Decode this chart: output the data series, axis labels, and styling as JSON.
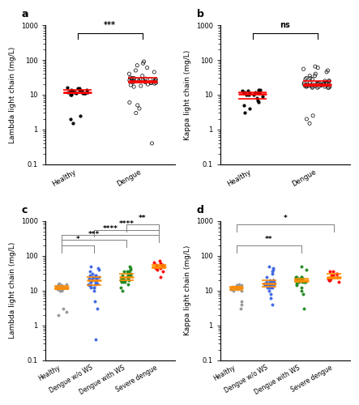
{
  "panel_a": {
    "label": "a",
    "ylabel": "Lambda light chain (mg/L)",
    "groups": [
      "Healthy",
      "Dengue"
    ],
    "median_color": "#FF0000",
    "sig_text": "***",
    "sig_color": "black",
    "ylim": [
      0.1,
      1000
    ],
    "healthy_data": [
      12,
      14,
      11,
      15,
      13,
      10,
      12,
      11,
      14,
      13,
      16,
      12,
      11,
      10,
      13,
      14,
      12,
      15,
      11,
      13,
      2.5,
      2.0,
      1.5
    ],
    "dengue_data": [
      25,
      28,
      22,
      30,
      27,
      24,
      26,
      29,
      23,
      31,
      25,
      28,
      22,
      27,
      24,
      20,
      18,
      30,
      35,
      40,
      45,
      50,
      60,
      70,
      80,
      90,
      25,
      22,
      28,
      26,
      24,
      23,
      21,
      19,
      17,
      6,
      5,
      4,
      3,
      0.4
    ]
  },
  "panel_b": {
    "label": "b",
    "ylabel": "Kappa light chain (mg/L)",
    "groups": [
      "Healthy",
      "Dengue"
    ],
    "median_color": "#FF0000",
    "sig_text": "ns",
    "sig_color": "black",
    "ylim": [
      0.1,
      1000
    ],
    "healthy_data": [
      11,
      13,
      10,
      12,
      14,
      11,
      9,
      12,
      10,
      13,
      11,
      8,
      7,
      6,
      5,
      4,
      3,
      14,
      12,
      10
    ],
    "dengue_data": [
      18,
      20,
      17,
      22,
      19,
      16,
      21,
      18,
      20,
      17,
      22,
      19,
      16,
      21,
      18,
      20,
      17,
      22,
      19,
      16,
      21,
      25,
      30,
      35,
      25,
      22,
      28,
      18,
      20,
      17,
      22,
      19,
      16,
      21,
      18,
      20,
      17,
      22,
      25,
      28,
      30,
      35,
      40,
      45,
      50,
      55,
      60,
      65,
      1.5,
      2.0,
      2.5
    ]
  },
  "panel_c": {
    "label": "c",
    "ylabel": "Lambda light chain (mg/L)",
    "groups": [
      "Healthy",
      "Dengue w/o WS",
      "Dengue with WS",
      "Severe dengue"
    ],
    "colors": [
      "#999999",
      "#4169E1",
      "#228B22",
      "#FF0000"
    ],
    "median_color": "#FF8C00",
    "sig_pairs": [
      {
        "pair": [
          0,
          1
        ],
        "text": "*"
      },
      {
        "pair": [
          0,
          2
        ],
        "text": "***"
      },
      {
        "pair": [
          0,
          3
        ],
        "text": "****"
      },
      {
        "pair": [
          1,
          3
        ],
        "text": "****"
      },
      {
        "pair": [
          2,
          3
        ],
        "text": "**"
      }
    ],
    "ylim": [
      0.1,
      1000
    ],
    "group_data": [
      [
        12,
        14,
        11,
        13,
        10,
        15,
        12,
        11,
        14,
        13,
        16,
        12,
        11,
        10,
        13,
        14,
        12,
        15,
        11,
        13,
        2.5,
        2.0,
        3.0
      ],
      [
        20,
        18,
        22,
        25,
        28,
        15,
        12,
        14,
        16,
        20,
        18,
        22,
        25,
        28,
        15,
        12,
        14,
        16,
        20,
        18,
        22,
        25,
        28,
        30,
        35,
        40,
        45,
        50,
        0.4,
        3,
        5,
        10,
        12
      ],
      [
        25,
        28,
        30,
        22,
        20,
        18,
        35,
        40,
        45,
        50,
        25,
        22,
        28,
        30,
        35,
        20,
        18,
        15,
        12,
        10,
        25,
        28,
        30,
        22,
        20,
        18,
        35
      ],
      [
        50,
        60,
        55,
        45,
        70,
        65,
        50,
        55,
        45,
        50,
        40,
        35,
        25
      ]
    ]
  },
  "panel_d": {
    "label": "d",
    "ylabel": "Kappa light chain (mg/L)",
    "groups": [
      "Healthy",
      "Dengue w/o WS",
      "Dengue with WS",
      "Severe dengue"
    ],
    "colors": [
      "#999999",
      "#4169E1",
      "#228B22",
      "#FF0000"
    ],
    "median_color": "#FF8C00",
    "sig_pairs": [
      {
        "pair": [
          0,
          2
        ],
        "text": "**"
      },
      {
        "pair": [
          0,
          3
        ],
        "text": "*"
      }
    ],
    "ylim": [
      0.1,
      1000
    ],
    "group_data": [
      [
        12,
        14,
        11,
        13,
        10,
        15,
        12,
        11,
        14,
        13,
        5,
        4,
        3,
        12,
        11,
        10,
        13,
        14,
        12
      ],
      [
        15,
        18,
        12,
        20,
        16,
        14,
        18,
        15,
        12,
        20,
        16,
        14,
        18,
        15,
        12,
        20,
        16,
        14,
        18,
        15,
        25,
        30,
        35,
        40,
        45,
        50,
        10,
        12,
        8,
        6,
        4
      ],
      [
        18,
        20,
        22,
        25,
        18,
        20,
        22,
        25,
        18,
        20,
        22,
        25,
        18,
        20,
        22,
        25,
        18,
        20,
        22,
        16,
        14,
        12,
        10,
        8,
        3,
        40,
        50
      ],
      [
        25,
        30,
        28,
        35,
        20,
        22,
        18,
        25,
        30,
        28,
        35,
        20,
        22
      ]
    ]
  },
  "background_color": "#FFFFFF",
  "tick_fontsize": 6,
  "axis_label_fontsize": 6.5
}
